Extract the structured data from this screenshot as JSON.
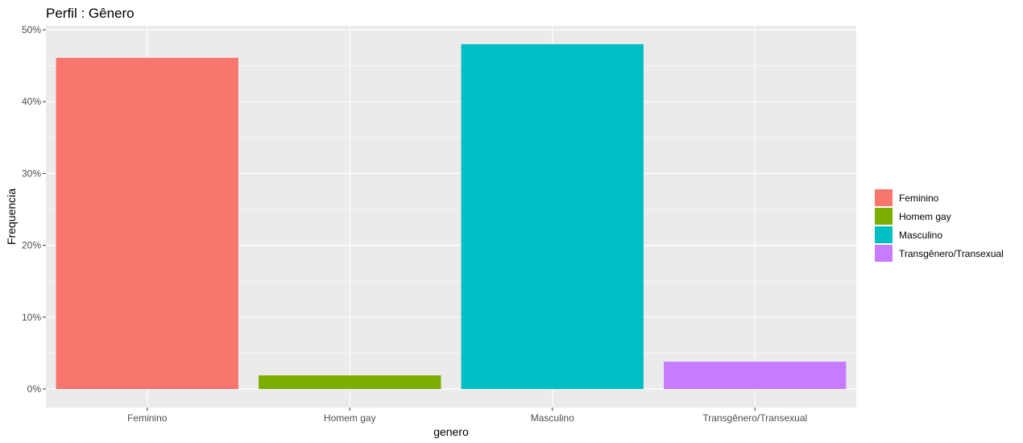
{
  "chart_data": {
    "type": "bar",
    "title": "Perfil : Gênero",
    "xlabel": "genero",
    "ylabel": "Frequencia",
    "categories": [
      "Feminino",
      "Homem gay",
      "Masculino",
      "Transgênero/Transexual"
    ],
    "values": [
      46.1,
      1.9,
      48.0,
      3.8
    ],
    "colors": [
      "#F8766D",
      "#7CAE00",
      "#00BFC4",
      "#C77CFF"
    ],
    "ylim": [
      0,
      50
    ],
    "y_ticks": [
      0,
      10,
      20,
      30,
      40,
      50
    ],
    "y_tick_labels": [
      "0%",
      "10%",
      "20%",
      "30%",
      "40%",
      "50%"
    ],
    "grid": true,
    "panel_background": "#EBEBEB",
    "legend": {
      "position": "right",
      "entries": [
        "Feminino",
        "Homem gay",
        "Masculino",
        "Transgênero/Transexual"
      ]
    }
  }
}
